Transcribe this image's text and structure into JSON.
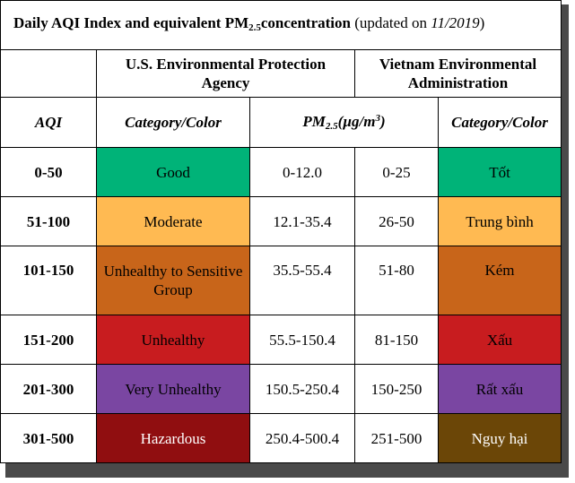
{
  "title": {
    "main_pre": "Daily AQI Index and equivalent PM",
    "main_sub": "2.5",
    "main_post": "concentration",
    "note_pre": "(updated on ",
    "note_date": "11/2019",
    "note_post": ")"
  },
  "headers": {
    "us": "U.S. Environmental Protection Agency",
    "vn": "Vietnam Environmental Administration"
  },
  "subheaders": {
    "aqi": "AQI",
    "category_us": "Category/Color",
    "pm_pre": "PM",
    "pm_sub": "2.5",
    "pm_unit_pre": "(µg/m",
    "pm_unit_sup": "3",
    "pm_unit_post": ")",
    "category_vn": "Category/Color"
  },
  "rows": [
    {
      "aqi": "0-50",
      "us_category": "Good",
      "us_pm": "0-12.0",
      "vn_pm": "0-25",
      "vn_category": "Tốt",
      "us_color": "#00b378",
      "vn_color": "#00b378",
      "us_text": "#000000",
      "vn_text": "#000000"
    },
    {
      "aqi": "51-100",
      "us_category": "Moderate",
      "us_pm": "12.1-35.4",
      "vn_pm": "26-50",
      "vn_category": "Trung bình",
      "us_color": "#ffba52",
      "vn_color": "#ffba52",
      "us_text": "#000000",
      "vn_text": "#000000"
    },
    {
      "aqi": "101-150",
      "us_category": "Unhealthy to Sensitive Group",
      "us_pm": "35.5-55.4",
      "vn_pm": "51-80",
      "vn_category": "Kém",
      "us_color": "#c8651a",
      "vn_color": "#c8651a",
      "us_text": "#000000",
      "vn_text": "#000000"
    },
    {
      "aqi": "151-200",
      "us_category": "Unhealthy",
      "us_pm": "55.5-150.4",
      "vn_pm": "81-150",
      "vn_category": "Xấu",
      "us_color": "#c81c1f",
      "vn_color": "#c81c1f",
      "us_text": "#000000",
      "vn_text": "#000000"
    },
    {
      "aqi": "201-300",
      "us_category": "Very Unhealthy",
      "us_pm": "150.5-250.4",
      "vn_pm": "150-250",
      "vn_category": "Rất xấu",
      "us_color": "#7a46a2",
      "vn_color": "#7a46a2",
      "us_text": "#000000",
      "vn_text": "#000000"
    },
    {
      "aqi": "301-500",
      "us_category": "Hazardous",
      "us_pm": "250.4-500.4",
      "vn_pm": "251-500",
      "vn_category": "Nguy hại",
      "us_color": "#900e10",
      "vn_color": "#6b4607",
      "us_text": "#ffffff",
      "vn_text": "#ffffff"
    }
  ]
}
